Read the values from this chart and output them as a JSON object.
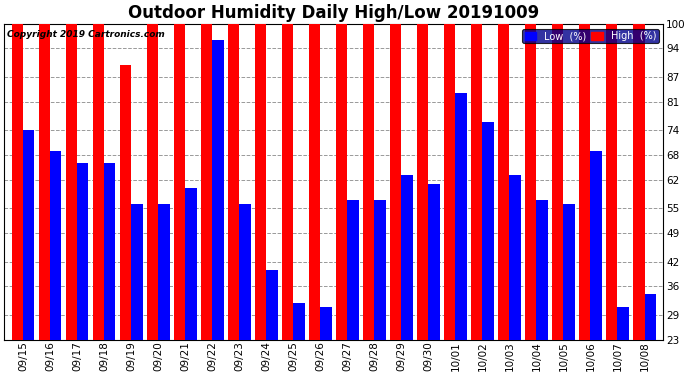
{
  "title": "Outdoor Humidity Daily High/Low 20191009",
  "copyright": "Copyright 2019 Cartronics.com",
  "dates": [
    "09/15",
    "09/16",
    "09/17",
    "09/18",
    "09/19",
    "09/20",
    "09/21",
    "09/22",
    "09/23",
    "09/24",
    "09/25",
    "09/26",
    "09/27",
    "09/28",
    "09/29",
    "09/30",
    "10/01",
    "10/02",
    "10/03",
    "10/04",
    "10/05",
    "10/06",
    "10/07",
    "10/08"
  ],
  "high_values": [
    100,
    100,
    100,
    100,
    90,
    100,
    100,
    100,
    100,
    100,
    100,
    100,
    100,
    100,
    100,
    100,
    100,
    100,
    100,
    100,
    100,
    100,
    100,
    100
  ],
  "low_values": [
    74,
    69,
    66,
    66,
    56,
    56,
    60,
    96,
    56,
    40,
    32,
    31,
    57,
    57,
    63,
    61,
    83,
    76,
    63,
    57,
    56,
    69,
    31,
    34
  ],
  "high_color": "#ff0000",
  "low_color": "#0000ff",
  "background_color": "#ffffff",
  "ylim_min": 23,
  "ylim_max": 100,
  "yticks": [
    23,
    29,
    36,
    42,
    49,
    55,
    62,
    68,
    74,
    81,
    87,
    94,
    100
  ],
  "grid_color": "#999999",
  "bar_width": 0.42,
  "title_fontsize": 12,
  "tick_fontsize": 7.5,
  "legend_labels": [
    "Low  (%)",
    "High  (%)"
  ]
}
